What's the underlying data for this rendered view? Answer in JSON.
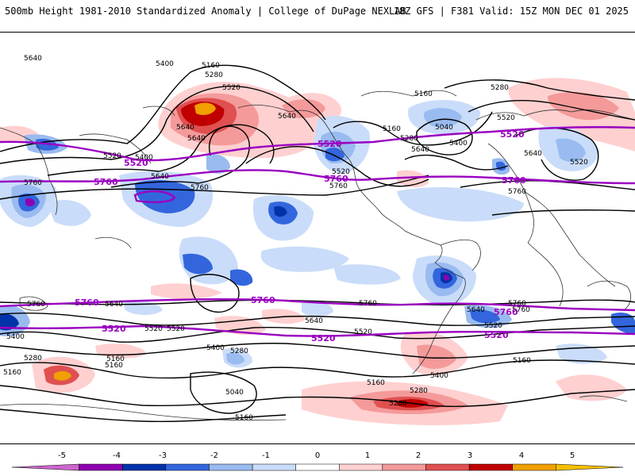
{
  "header": {
    "title_left": "500mb Height 1981-2010 Standardized Anomaly | College of DuPage NEXLAB",
    "title_right": "18Z GFS | F381 Valid: 15Z MON DEC 01 2025"
  },
  "colors": {
    "purple_contour": "#9a00c0",
    "black_contour": "#000000",
    "coast": "#333333"
  },
  "contour_labels": [
    "5160",
    "5280",
    "5520",
    "5640",
    "5160",
    "5520",
    "5040",
    "5160",
    "5280",
    "5640",
    "5400",
    "5280",
    "5520",
    "5400",
    "5640",
    "5760",
    "5640",
    "5760",
    "5520",
    "5760",
    "5760",
    "5640",
    "5760",
    "5640",
    "5760",
    "5640",
    "5520",
    "5400",
    "5280",
    "5160",
    "5040",
    "5160",
    "5520",
    "5400",
    "5280",
    "5160",
    "5640",
    "5520",
    "5160",
    "5280",
    "5400",
    "5760",
    "5640",
    "5520",
    "5160",
    "5400",
    "5280",
    "5160",
    "5520",
    "5760",
    "5640"
  ],
  "purple_labels": [
    "5520",
    "5760",
    "5520",
    "5760",
    "5520",
    "5760",
    "5760",
    "5760",
    "5520",
    "5520",
    "5760",
    "5520"
  ],
  "colorbar": {
    "ticks": [
      "-5",
      "-4",
      "-3",
      "-2",
      "-1",
      "0",
      "1",
      "2",
      "3",
      "4",
      "5"
    ],
    "colors": [
      "#cc66cc",
      "#8f00b0",
      "#0033aa",
      "#3366dd",
      "#99bbf0",
      "#c9dcf9",
      "#ffffff",
      "#ffd0d0",
      "#f49a9a",
      "#e05050",
      "#c00000",
      "#f0a000",
      "#f5c000"
    ]
  }
}
